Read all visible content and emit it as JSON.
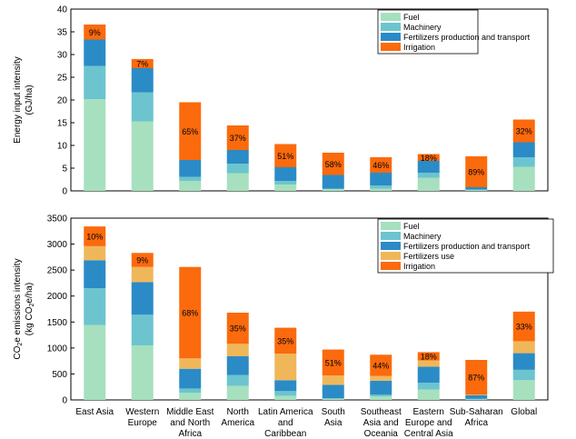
{
  "chart_data": [
    {
      "type": "bar",
      "stacked": true,
      "ylabel": "Energy input intensity",
      "ylabel_unit": "(GJ/ha)",
      "ylim": [
        0,
        40
      ],
      "yticks": [
        0,
        5,
        10,
        15,
        20,
        25,
        30,
        35,
        40
      ],
      "legend_position": "top-right",
      "categories": [
        "East Asia",
        "Western Europe",
        "Middle East and North Africa",
        "North America",
        "Latin America and Caribbean",
        "South Asia",
        "Southeast Asia and Oceania",
        "Eastern Europe and Central Asia",
        "Sub-Saharan Africa",
        "Global"
      ],
      "series": [
        {
          "name": "Fuel",
          "color": "#a6e0be",
          "values": [
            20.2,
            15.3,
            2.2,
            3.9,
            1.4,
            0.4,
            0.5,
            2.9,
            0.2,
            5.3
          ]
        },
        {
          "name": "Machinery",
          "color": "#6cc4cf",
          "values": [
            7.3,
            6.4,
            0.9,
            2.1,
            0.8,
            0.1,
            0.7,
            1.1,
            0.1,
            2.1
          ]
        },
        {
          "name": "Fertilizers production and transport",
          "color": "#2b8bc6",
          "values": [
            5.8,
            5.3,
            3.7,
            3.0,
            3.0,
            3.0,
            2.8,
            2.6,
            0.5,
            3.3
          ]
        },
        {
          "name": "Irrigation",
          "color": "#fb6a0c",
          "values": [
            3.3,
            2.0,
            12.7,
            5.4,
            5.1,
            4.9,
            3.4,
            1.5,
            6.8,
            5.0
          ]
        }
      ],
      "annotations": [
        "9%",
        "7%",
        "65%",
        "37%",
        "51%",
        "58%",
        "46%",
        "18%",
        "89%",
        "32%"
      ]
    },
    {
      "type": "bar",
      "stacked": true,
      "ylabel_main": "CO",
      "ylabel_sub": "2",
      "ylabel_rest": "e emissions intensity",
      "ylabel_unit_pre": "(kg CO",
      "ylabel_unit_sub": "2",
      "ylabel_unit_post": "e/ha)",
      "ylim": [
        0,
        3500
      ],
      "yticks": [
        0,
        500,
        1000,
        1500,
        2000,
        2500,
        3000,
        3500
      ],
      "legend_position": "top-right",
      "categories": [
        "East Asia",
        "Western Europe",
        "Middle East and North Africa",
        "North America",
        "Latin America and Caribbean",
        "South Asia",
        "Southeast Asia and Oceania",
        "Eastern Europe and Central Asia",
        "Sub-Saharan Africa",
        "Global"
      ],
      "series": [
        {
          "name": "Fuel",
          "color": "#a6e0be",
          "values": [
            1440,
            1050,
            140,
            270,
            80,
            20,
            70,
            200,
            10,
            380
          ]
        },
        {
          "name": "Machinery",
          "color": "#6cc4cf",
          "values": [
            710,
            590,
            80,
            210,
            90,
            10,
            30,
            130,
            10,
            200
          ]
        },
        {
          "name": "Fertilizers production and transport",
          "color": "#2b8bc6",
          "values": [
            540,
            630,
            380,
            360,
            210,
            260,
            270,
            310,
            70,
            320
          ]
        },
        {
          "name": "Fertilizers use",
          "color": "#f0b75a",
          "values": [
            270,
            290,
            200,
            240,
            510,
            180,
            90,
            120,
            10,
            230
          ]
        },
        {
          "name": "Irrigation",
          "color": "#fb6a0c",
          "values": [
            380,
            270,
            1760,
            600,
            500,
            500,
            410,
            160,
            670,
            570
          ]
        }
      ],
      "annotations": [
        "10%",
        "9%",
        "68%",
        "35%",
        "35%",
        "51%",
        "44%",
        "18%",
        "87%",
        "33%"
      ]
    }
  ],
  "category_lines": [
    [
      "East Asia"
    ],
    [
      "Western",
      "Europe"
    ],
    [
      "Middle East",
      "and North",
      "Africa"
    ],
    [
      "North",
      "America"
    ],
    [
      "Latin America",
      "and",
      "Caribbean"
    ],
    [
      "South",
      "Asia"
    ],
    [
      "Southeast",
      "Asia and",
      "Oceania"
    ],
    [
      "Eastern",
      "Europe and",
      "Central Asia"
    ],
    [
      "Sub-Saharan",
      "Africa"
    ],
    [
      "Global"
    ]
  ]
}
